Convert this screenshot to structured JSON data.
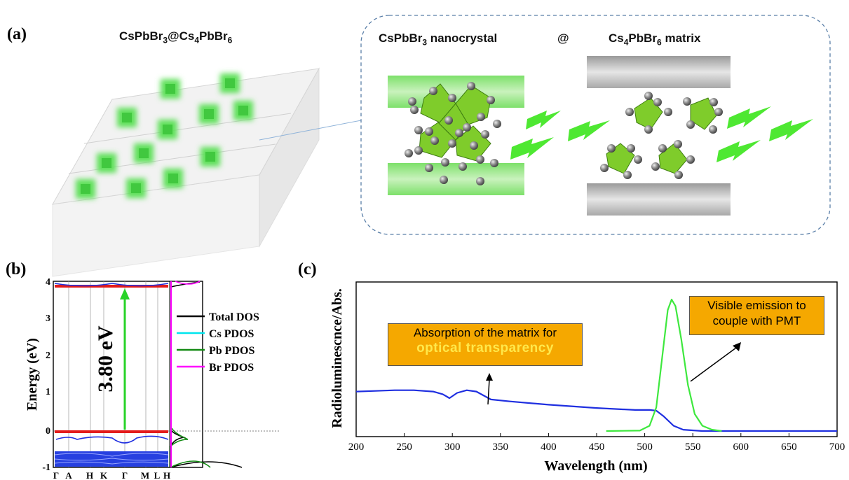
{
  "panel_a": {
    "label": "(a)",
    "composite_title": {
      "base": "CsPbBr",
      "s1": "3",
      "mid": "@Cs",
      "s2": "4",
      "mid2": "PbBr",
      "s3": "6"
    },
    "nanocrystal_title": {
      "base": "CsPbBr",
      "s1": "3",
      "rest": " nanocrystal"
    },
    "at_symbol": "@",
    "matrix_title": {
      "base": "Cs",
      "s1": "4",
      "mid": "PbBr",
      "s2": "6",
      "rest": " matrix"
    },
    "colors": {
      "green": "#6fdc4a",
      "bright_green": "#39e05a",
      "gray": "#bdbdbd",
      "dash": "#5a7fa8"
    }
  },
  "panel_b": {
    "label": "(b)",
    "ylabel": "Energy (eV)",
    "band_gap_label": "3.80 eV",
    "k_labels": [
      "Γ",
      "A",
      "H",
      "K",
      "Γ",
      "M",
      "L",
      "H"
    ],
    "y_ticks": [
      "4",
      "3",
      "2",
      "1",
      "0",
      "-1"
    ],
    "legend": [
      {
        "name": "Total DOS",
        "color": "#000000"
      },
      {
        "name": "Cs PDOS",
        "color": "#00e5ee"
      },
      {
        "name": "Pb PDOS",
        "color": "#138a13"
      },
      {
        "name": "Br PDOS",
        "color": "#ff00ff"
      }
    ]
  },
  "panel_c": {
    "label": "(c)",
    "chart_data": {
      "type": "line",
      "xlabel": "Wavelength (nm)",
      "ylabel": "Radioluminescnce/Abs.",
      "xlim": [
        200,
        700
      ],
      "x_ticks": [
        200,
        250,
        300,
        350,
        400,
        450,
        500,
        550,
        600,
        650,
        700
      ],
      "series": [
        {
          "color": "#1f2fe0",
          "points": [
            [
              200,
              0.3
            ],
            [
              220,
              0.305
            ],
            [
              240,
              0.31
            ],
            [
              260,
              0.31
            ],
            [
              280,
              0.3
            ],
            [
              290,
              0.28
            ],
            [
              297,
              0.25
            ],
            [
              305,
              0.29
            ],
            [
              315,
              0.31
            ],
            [
              325,
              0.3
            ],
            [
              330,
              0.28
            ],
            [
              340,
              0.24
            ],
            [
              360,
              0.225
            ],
            [
              400,
              0.2
            ],
            [
              450,
              0.175
            ],
            [
              490,
              0.16
            ],
            [
              505,
              0.16
            ],
            [
              512,
              0.155
            ],
            [
              520,
              0.11
            ],
            [
              530,
              0.04
            ],
            [
              540,
              0.01
            ],
            [
              560,
              0.0
            ],
            [
              600,
              0.0
            ],
            [
              650,
              0.0
            ],
            [
              700,
              0.0
            ]
          ]
        },
        {
          "color": "#3ee83e",
          "points": [
            [
              460,
              0.0
            ],
            [
              495,
              0.003
            ],
            [
              505,
              0.04
            ],
            [
              512,
              0.18
            ],
            [
              518,
              0.55
            ],
            [
              524,
              0.92
            ],
            [
              528,
              1.0
            ],
            [
              532,
              0.95
            ],
            [
              538,
              0.7
            ],
            [
              545,
              0.35
            ],
            [
              552,
              0.13
            ],
            [
              560,
              0.04
            ],
            [
              570,
              0.01
            ],
            [
              580,
              0.0
            ]
          ]
        }
      ],
      "annotations": [
        {
          "text_line1": "Absorption of the matrix for",
          "text_line2": "optical transparency"
        },
        {
          "text_line1": "Visible emission to",
          "text_line2": "couple with PMT"
        }
      ]
    }
  }
}
